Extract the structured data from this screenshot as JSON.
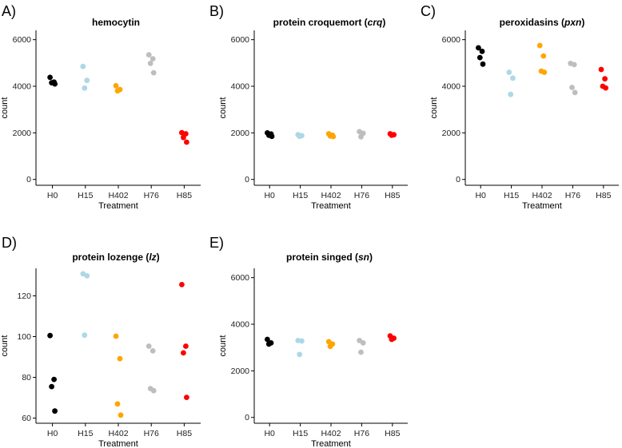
{
  "colors": {
    "H0": "#000000",
    "H15": "#add8e6",
    "H402": "#ffa500",
    "H76": "#bebebe",
    "H85": "#ff0000"
  },
  "chart_data": [
    {
      "type": "scatter",
      "panel": "A)",
      "title": "hemocytin",
      "title_italic": "",
      "xlabel": "Treatment",
      "ylabel": "count",
      "categories": [
        "H0",
        "H15",
        "H402",
        "H76",
        "H85"
      ],
      "ylim": [
        -250,
        6400
      ],
      "yticks": [
        0,
        2000,
        4000,
        6000
      ],
      "yticklabels": [
        "0",
        "2000",
        "4000",
        "6000"
      ],
      "points": [
        {
          "x": "H0",
          "y": 4380
        },
        {
          "x": "H0",
          "y": 4180
        },
        {
          "x": "H0",
          "y": 4150
        },
        {
          "x": "H0",
          "y": 4100
        },
        {
          "x": "H15",
          "y": 4850
        },
        {
          "x": "H15",
          "y": 4250
        },
        {
          "x": "H15",
          "y": 3920
        },
        {
          "x": "H402",
          "y": 4020
        },
        {
          "x": "H402",
          "y": 3860
        },
        {
          "x": "H402",
          "y": 3800
        },
        {
          "x": "H76",
          "y": 5350
        },
        {
          "x": "H76",
          "y": 5180
        },
        {
          "x": "H76",
          "y": 4980
        },
        {
          "x": "H76",
          "y": 4580
        },
        {
          "x": "H85",
          "y": 2010
        },
        {
          "x": "H85",
          "y": 1960
        },
        {
          "x": "H85",
          "y": 1800
        },
        {
          "x": "H85",
          "y": 1600
        }
      ]
    },
    {
      "type": "scatter",
      "panel": "B)",
      "title": "protein croquemort (",
      "title_italic": "crq",
      "title_end": ")",
      "xlabel": "Treatment",
      "ylabel": "count",
      "categories": [
        "H0",
        "H15",
        "H402",
        "H76",
        "H85"
      ],
      "ylim": [
        -250,
        6400
      ],
      "yticks": [
        0,
        2000,
        4000,
        6000
      ],
      "yticklabels": [
        "0",
        "2000",
        "4000",
        "6000"
      ],
      "points": [
        {
          "x": "H0",
          "y": 2000
        },
        {
          "x": "H0",
          "y": 1950
        },
        {
          "x": "H0",
          "y": 1900
        },
        {
          "x": "H0",
          "y": 1850
        },
        {
          "x": "H15",
          "y": 1920
        },
        {
          "x": "H15",
          "y": 1880
        },
        {
          "x": "H15",
          "y": 1850
        },
        {
          "x": "H402",
          "y": 1960
        },
        {
          "x": "H402",
          "y": 1900
        },
        {
          "x": "H402",
          "y": 1860
        },
        {
          "x": "H402",
          "y": 1840
        },
        {
          "x": "H76",
          "y": 2050
        },
        {
          "x": "H76",
          "y": 1980
        },
        {
          "x": "H76",
          "y": 1830
        },
        {
          "x": "H85",
          "y": 1960
        },
        {
          "x": "H85",
          "y": 1920
        },
        {
          "x": "H85",
          "y": 1900
        }
      ]
    },
    {
      "type": "scatter",
      "panel": "C)",
      "title": "peroxidasins (",
      "title_italic": "pxn",
      "title_end": ")",
      "xlabel": "Treatment",
      "ylabel": "count",
      "categories": [
        "H0",
        "H15",
        "H402",
        "H76",
        "H85"
      ],
      "ylim": [
        -250,
        6400
      ],
      "yticks": [
        0,
        2000,
        4000,
        6000
      ],
      "yticklabels": [
        "0",
        "2000",
        "4000",
        "6000"
      ],
      "points": [
        {
          "x": "H0",
          "y": 5650
        },
        {
          "x": "H0",
          "y": 5500
        },
        {
          "x": "H0",
          "y": 5230
        },
        {
          "x": "H0",
          "y": 4950
        },
        {
          "x": "H15",
          "y": 4600
        },
        {
          "x": "H15",
          "y": 4350
        },
        {
          "x": "H15",
          "y": 3650
        },
        {
          "x": "H402",
          "y": 5750
        },
        {
          "x": "H402",
          "y": 5300
        },
        {
          "x": "H402",
          "y": 4650
        },
        {
          "x": "H402",
          "y": 4600
        },
        {
          "x": "H76",
          "y": 4980
        },
        {
          "x": "H76",
          "y": 4930
        },
        {
          "x": "H76",
          "y": 3950
        },
        {
          "x": "H76",
          "y": 3730
        },
        {
          "x": "H85",
          "y": 4720
        },
        {
          "x": "H85",
          "y": 4320
        },
        {
          "x": "H85",
          "y": 4000
        },
        {
          "x": "H85",
          "y": 3930
        }
      ]
    },
    {
      "type": "scatter",
      "panel": "D)",
      "title": "protein lozenge (",
      "title_italic": "lz",
      "title_end": ")",
      "xlabel": "Treatment",
      "ylabel": "count",
      "categories": [
        "H0",
        "H15",
        "H402",
        "H76",
        "H85"
      ],
      "ylim": [
        57.5,
        133.5
      ],
      "yticks": [
        60,
        80,
        100,
        120
      ],
      "yticklabels": [
        "60",
        "80",
        "100",
        "120"
      ],
      "points": [
        {
          "x": "H0",
          "y": 100.5
        },
        {
          "x": "H0",
          "y": 79
        },
        {
          "x": "H0",
          "y": 75.5
        },
        {
          "x": "H0",
          "y": 63.5
        },
        {
          "x": "H15",
          "y": 130.8
        },
        {
          "x": "H15",
          "y": 129.8
        },
        {
          "x": "H15",
          "y": 100.7
        },
        {
          "x": "H402",
          "y": 100.2
        },
        {
          "x": "H402",
          "y": 89.2
        },
        {
          "x": "H402",
          "y": 67
        },
        {
          "x": "H402",
          "y": 61.5
        },
        {
          "x": "H76",
          "y": 95.3
        },
        {
          "x": "H76",
          "y": 93
        },
        {
          "x": "H76",
          "y": 74.5
        },
        {
          "x": "H76",
          "y": 73.5
        },
        {
          "x": "H85",
          "y": 125.5
        },
        {
          "x": "H85",
          "y": 95.3
        },
        {
          "x": "H85",
          "y": 92
        },
        {
          "x": "H85",
          "y": 70.2
        }
      ]
    },
    {
      "type": "scatter",
      "panel": "E)",
      "title": "protein singed (",
      "title_italic": "sn",
      "title_end": ")",
      "xlabel": "Treatment",
      "ylabel": "count",
      "categories": [
        "H0",
        "H15",
        "H402",
        "H76",
        "H85"
      ],
      "ylim": [
        -250,
        6400
      ],
      "yticks": [
        0,
        2000,
        4000,
        6000
      ],
      "yticklabels": [
        "0",
        "2000",
        "4000",
        "6000"
      ],
      "points": [
        {
          "x": "H0",
          "y": 3350
        },
        {
          "x": "H0",
          "y": 3200
        },
        {
          "x": "H0",
          "y": 3150
        },
        {
          "x": "H15",
          "y": 3300
        },
        {
          "x": "H15",
          "y": 3280
        },
        {
          "x": "H15",
          "y": 2700
        },
        {
          "x": "H402",
          "y": 3250
        },
        {
          "x": "H402",
          "y": 3150
        },
        {
          "x": "H402",
          "y": 3050
        },
        {
          "x": "H76",
          "y": 3300
        },
        {
          "x": "H76",
          "y": 3200
        },
        {
          "x": "H76",
          "y": 2800
        },
        {
          "x": "H85",
          "y": 3500
        },
        {
          "x": "H85",
          "y": 3400
        },
        {
          "x": "H85",
          "y": 3350
        }
      ]
    }
  ]
}
